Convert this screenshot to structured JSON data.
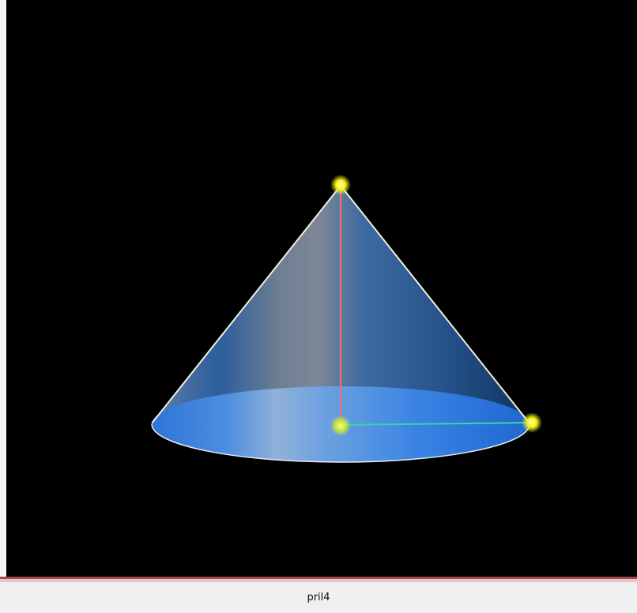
{
  "status_bar": {
    "label": "pril4"
  },
  "scene": {
    "background_color": "#000000",
    "cone_color": "#2a6fd6",
    "height_segment_color": "#ff6b6b",
    "radius_segment_color": "#33d9a0",
    "point_color": "#f5f520",
    "outline_color": "#f2f0dc"
  }
}
